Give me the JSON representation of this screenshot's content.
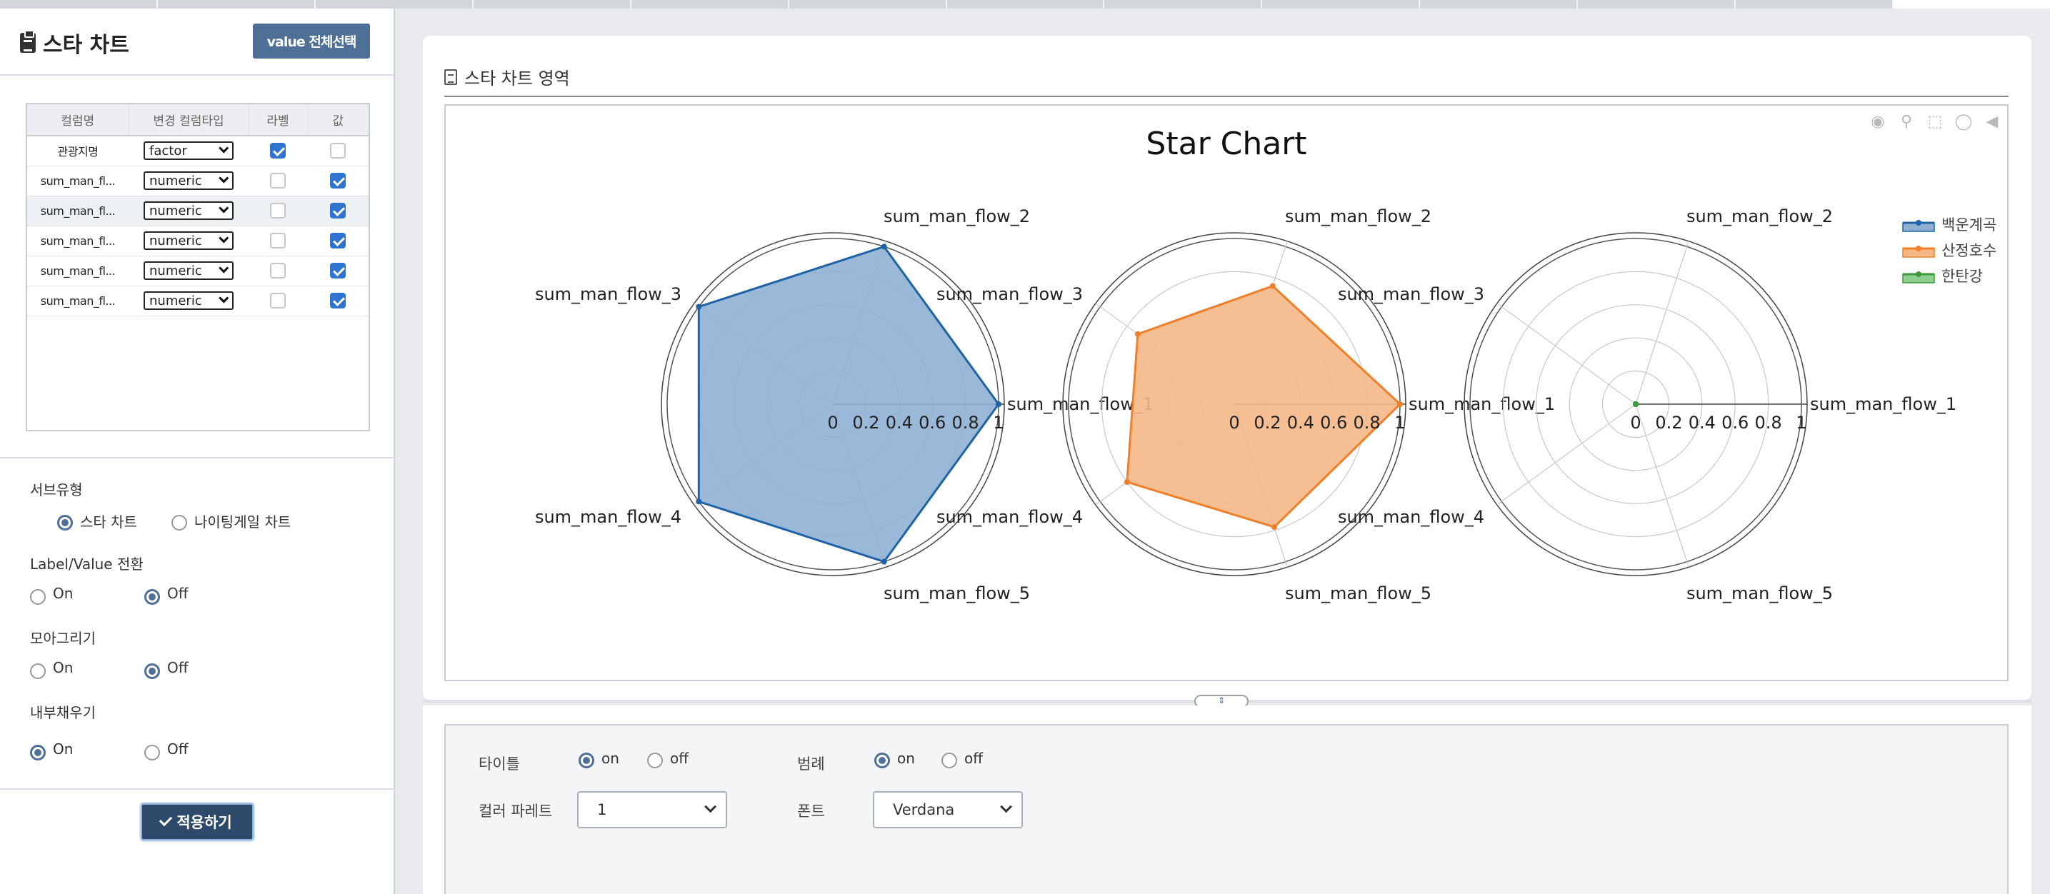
{
  "header": {
    "title": "스타 차트",
    "value_select_all": "value 전체선택"
  },
  "column_table": {
    "headers": [
      "컬럼명",
      "변경 컬럼타입",
      "라벨",
      "값"
    ],
    "rows": [
      {
        "name": "관광지명",
        "type": "factor",
        "label": true,
        "value": false
      },
      {
        "name": "sum_man_fl...",
        "type": "numeric",
        "label": false,
        "value": true
      },
      {
        "name": "sum_man_fl...",
        "type": "numeric",
        "label": false,
        "value": true
      },
      {
        "name": "sum_man_fl...",
        "type": "numeric",
        "label": false,
        "value": true
      },
      {
        "name": "sum_man_fl...",
        "type": "numeric",
        "label": false,
        "value": true
      },
      {
        "name": "sum_man_fl...",
        "type": "numeric",
        "label": false,
        "value": true
      }
    ]
  },
  "options": {
    "subtype": {
      "label": "서브유형",
      "choices": [
        "스타 차트",
        "나이팅게일 차트"
      ],
      "selected": "스타 차트"
    },
    "label_value": {
      "label": "Label/Value 전환",
      "choices": [
        "On",
        "Off"
      ],
      "selected": "Off"
    },
    "collect": {
      "label": "모아그리기",
      "choices": [
        "On",
        "Off"
      ],
      "selected": "Off"
    },
    "fill": {
      "label": "내부채우기",
      "choices": [
        "On",
        "Off"
      ],
      "selected": "On"
    },
    "apply_label": "적용하기"
  },
  "chart_area": {
    "title": "스타 차트 영역"
  },
  "chart_data": {
    "type": "radar",
    "title": "Star Chart",
    "axes": [
      "sum_man_flow_1",
      "sum_man_flow_2",
      "sum_man_flow_3",
      "sum_man_flow_4",
      "sum_man_flow_5"
    ],
    "radial_ticks": [
      "0",
      "0.2",
      "0.4",
      "0.6",
      "0.8",
      "1"
    ],
    "rlim": [
      0,
      1
    ],
    "series": [
      {
        "name": "백운계곡",
        "color": "#1f62a6",
        "fill": "#8fb0d3",
        "values": [
          1.0,
          1.0,
          1.0,
          1.0,
          1.0
        ]
      },
      {
        "name": "산정호수",
        "color": "#f07f2a",
        "fill": "#f4b887",
        "values": [
          1.0,
          0.75,
          0.72,
          0.8,
          0.78
        ]
      },
      {
        "name": "한탄강",
        "color": "#3c9a3c",
        "fill": "#8fcf8f",
        "values": [
          0.0,
          0.0,
          0.0,
          0.0,
          0.0
        ]
      }
    ],
    "legend_position": "top-right"
  },
  "bottom_options": {
    "title": {
      "label": "타이틀",
      "choices": [
        "on",
        "off"
      ],
      "selected": "on"
    },
    "legend": {
      "label": "범례",
      "choices": [
        "on",
        "off"
      ],
      "selected": "on"
    },
    "palette": {
      "label": "컬러 파레트",
      "value": "1"
    },
    "font": {
      "label": "폰트",
      "value": "Verdana"
    }
  }
}
